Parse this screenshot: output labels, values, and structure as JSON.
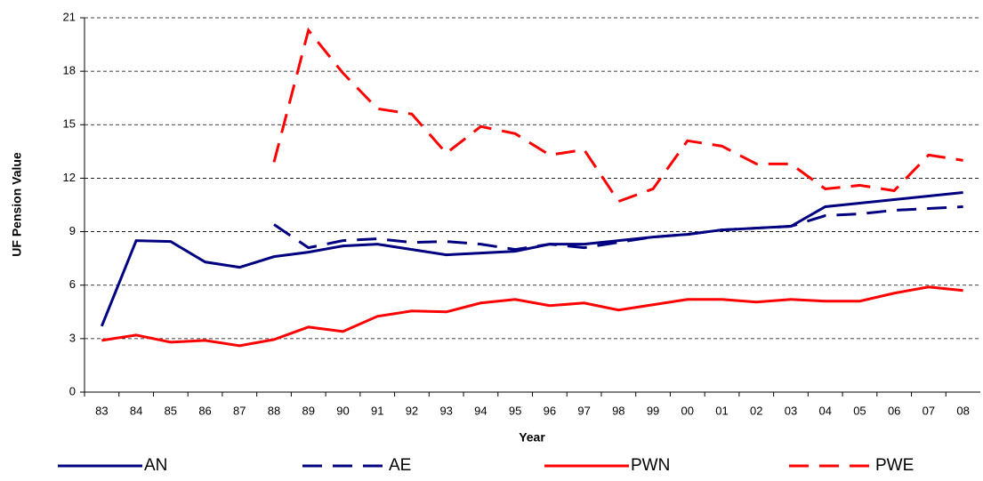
{
  "chart_data": {
    "type": "line",
    "x_label": "Year",
    "y_label": "UF Pension Value",
    "categories": [
      "83",
      "84",
      "85",
      "86",
      "87",
      "88",
      "89",
      "90",
      "91",
      "92",
      "93",
      "94",
      "95",
      "96",
      "97",
      "98",
      "99",
      "00",
      "01",
      "02",
      "03",
      "04",
      "05",
      "06",
      "07",
      "08"
    ],
    "series": [
      {
        "name": "AN",
        "color": "#000080",
        "style": "solid",
        "values": [
          3.7,
          8.5,
          8.45,
          7.3,
          7.0,
          7.6,
          7.85,
          8.2,
          8.3,
          8.0,
          7.7,
          7.8,
          7.9,
          8.3,
          8.3,
          8.5,
          8.7,
          8.85,
          9.1,
          9.2,
          9.3,
          10.4,
          10.6,
          10.8,
          11.0,
          11.2
        ]
      },
      {
        "name": "AE",
        "color": "#000080",
        "style": "dashed",
        "values": [
          null,
          null,
          null,
          null,
          null,
          9.4,
          8.1,
          8.5,
          8.6,
          8.4,
          8.45,
          8.3,
          8.0,
          8.3,
          8.1,
          8.4,
          8.7,
          8.85,
          9.1,
          9.2,
          9.3,
          9.9,
          10.0,
          10.2,
          10.3,
          10.4
        ]
      },
      {
        "name": "PWN",
        "color": "#ff0000",
        "style": "solid",
        "values": [
          2.9,
          3.2,
          2.8,
          2.9,
          2.6,
          2.95,
          3.65,
          3.4,
          4.25,
          4.55,
          4.5,
          5.0,
          5.2,
          4.85,
          5.0,
          4.6,
          4.9,
          5.2,
          5.2,
          5.05,
          5.2,
          5.1,
          5.1,
          5.55,
          5.9,
          5.7
        ]
      },
      {
        "name": "PWE",
        "color": "#ff0000",
        "style": "dashed",
        "values": [
          null,
          null,
          null,
          null,
          null,
          12.9,
          20.3,
          17.9,
          15.9,
          15.6,
          13.4,
          14.9,
          14.5,
          13.3,
          13.6,
          10.7,
          11.4,
          14.1,
          13.8,
          12.8,
          12.8,
          11.4,
          11.6,
          11.3,
          13.3,
          13.0
        ]
      }
    ],
    "ylim": [
      0,
      21
    ],
    "yticks": [
      0,
      3,
      6,
      9,
      12,
      15,
      18,
      21
    ],
    "grid": true,
    "legend": "bottom"
  }
}
